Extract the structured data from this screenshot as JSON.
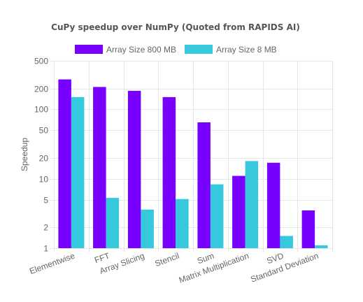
{
  "chart_data": {
    "type": "bar",
    "title": "CuPy speedup over NumPy (Quoted from RAPIDS AI)",
    "xlabel": "",
    "ylabel": "Speedup",
    "yscale": "log",
    "ylim": [
      1,
      500
    ],
    "yticks": [
      "1",
      "2",
      "5",
      "10",
      "20",
      "50",
      "100",
      "200",
      "500"
    ],
    "grid": true,
    "legend_position": "top",
    "categories": [
      "Elementwise",
      "FFT",
      "Array Slicing",
      "Stencil",
      "Sum",
      "Matrix Multiplication",
      "SVD",
      "Standard Deviation"
    ],
    "series": [
      {
        "name": "Array Size 800 MB",
        "color": "#7700ff",
        "values": [
          270,
          210,
          185,
          150,
          65,
          11,
          17,
          3.5
        ]
      },
      {
        "name": "Array Size 8 MB",
        "color": "#36c9dd",
        "values": [
          150,
          5.3,
          3.6,
          5.1,
          8.3,
          18,
          1.5,
          1.1
        ]
      }
    ]
  }
}
